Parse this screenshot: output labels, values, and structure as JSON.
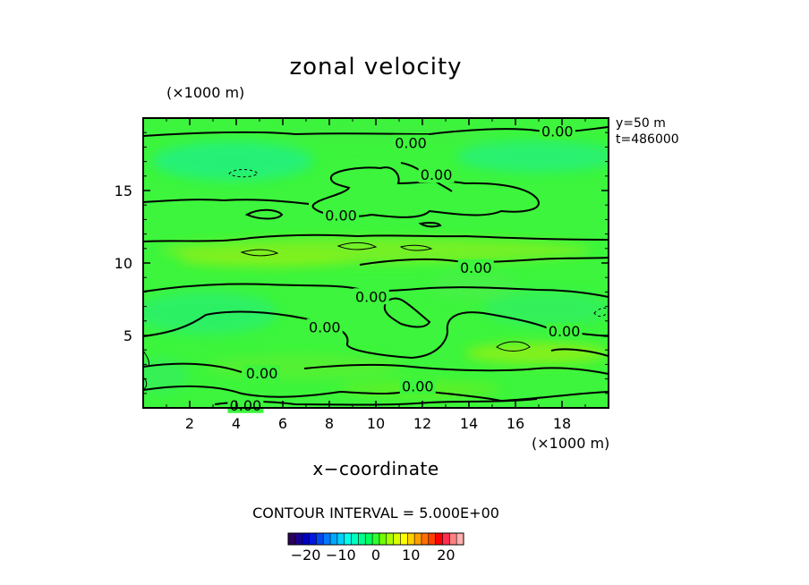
{
  "chart_data": {
    "type": "heatmap",
    "title": "zonal velocity",
    "xlabel": "x−coordinate",
    "x_unit_label": "(×1000 m)",
    "y_unit_label": "(×1000 m)",
    "xlim": [
      0,
      20
    ],
    "ylim": [
      0,
      20
    ],
    "x_ticks": [
      2,
      4,
      6,
      8,
      10,
      12,
      14,
      16,
      18
    ],
    "y_ticks": [
      5,
      10,
      15
    ],
    "info": [
      "y=50  m",
      "t=486000"
    ],
    "contour_interval_text": "CONTOUR INTERVAL = 5.000E+00",
    "contour_labels": [
      {
        "text": "0.00",
        "x": 17.8,
        "y": 19.1
      },
      {
        "text": "0.00",
        "x": 11.5,
        "y": 18.3
      },
      {
        "text": "0.00",
        "x": 12.6,
        "y": 16.1
      },
      {
        "text": "0.00",
        "x": 8.5,
        "y": 13.3
      },
      {
        "text": "0.00",
        "x": 14.3,
        "y": 9.7
      },
      {
        "text": "0.00",
        "x": 9.8,
        "y": 7.7
      },
      {
        "text": "0.00",
        "x": 7.8,
        "y": 5.6
      },
      {
        "text": "0.00",
        "x": 18.1,
        "y": 5.3
      },
      {
        "text": "0.00",
        "x": 5.1,
        "y": 2.4
      },
      {
        "text": "0.00",
        "x": 11.8,
        "y": 1.5
      },
      {
        "text": "0.00",
        "x": 4.4,
        "y": 0.2
      }
    ],
    "colorbar": {
      "range": [
        -25,
        25
      ],
      "ticks": [
        -20,
        -10,
        0,
        10,
        20
      ],
      "colors": [
        "#2b005e",
        "#1a0090",
        "#0000c0",
        "#0018e0",
        "#0048f0",
        "#0078ff",
        "#00a8ff",
        "#00d0ff",
        "#00ffee",
        "#00ffc0",
        "#00ff90",
        "#00ff60",
        "#30ff30",
        "#70ff00",
        "#a8ff00",
        "#d8ff00",
        "#ffff00",
        "#ffd000",
        "#ffa000",
        "#ff7000",
        "#ff4000",
        "#ff0000",
        "#ff3050",
        "#ff8080",
        "#ffb0b0"
      ]
    }
  }
}
